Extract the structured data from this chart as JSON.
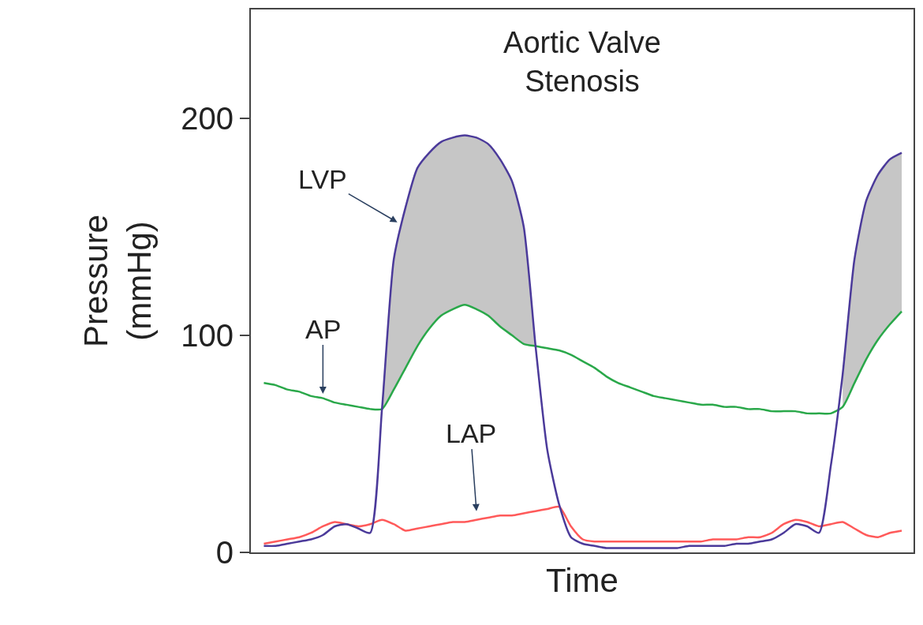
{
  "chart_data": {
    "type": "line",
    "title": "Aortic Valve\nStenosis",
    "xlabel": "Time",
    "ylabel": "Pressure\n(mmHg)",
    "categories": [
      null,
      null,
      null,
      null,
      null,
      null,
      null,
      null,
      null,
      null,
      null,
      null,
      null,
      null,
      null,
      null,
      null,
      null,
      null,
      null,
      null,
      null,
      null,
      null,
      null,
      null,
      null,
      null,
      null,
      null,
      null,
      null,
      null,
      null,
      null,
      null,
      null,
      null,
      null,
      null,
      null,
      null,
      null,
      null,
      null,
      null,
      null,
      null,
      null,
      null,
      null,
      null,
      null,
      null,
      null
    ],
    "series": [
      {
        "color": "#2aa84a",
        "values": [
          78,
          77,
          75,
          74,
          72,
          71,
          69,
          68,
          67,
          66,
          66,
          75,
          85,
          95,
          103,
          109,
          112,
          114,
          112,
          109,
          104,
          100,
          96,
          95,
          94,
          93,
          91,
          88,
          85,
          81,
          78,
          76,
          74,
          72,
          71,
          70,
          69,
          68,
          68,
          67,
          67,
          66,
          66,
          65,
          65,
          65,
          64,
          64,
          64,
          67,
          78,
          89,
          98,
          105,
          111
        ]
      },
      {
        "color": "#ff5a5a",
        "values": [
          4,
          5,
          6,
          7,
          9,
          12,
          14,
          13,
          12,
          13,
          15,
          13,
          10,
          11,
          12,
          13,
          14,
          14,
          15,
          16,
          17,
          17,
          18,
          19,
          20,
          21,
          12,
          6,
          5,
          5,
          5,
          5,
          5,
          5,
          5,
          5,
          5,
          5,
          6,
          6,
          6,
          7,
          7,
          9,
          13,
          15,
          14,
          12,
          13,
          14,
          11,
          8,
          7,
          9,
          10
        ]
      },
      {
        "color": "#4b3a9a",
        "values": [
          3,
          3,
          4,
          5,
          6,
          8,
          12,
          13,
          11,
          9,
          66,
          135,
          159,
          177,
          184,
          189,
          191,
          192,
          191,
          188,
          181,
          171,
          150,
          95,
          47,
          22,
          7,
          4,
          3,
          2,
          2,
          2,
          2,
          2,
          2,
          2,
          3,
          3,
          3,
          3,
          4,
          4,
          5,
          6,
          9,
          13,
          12,
          9,
          40,
          82,
          135,
          162,
          174,
          181,
          184
        ],
        "lower": [
          null,
          null,
          null,
          null,
          null,
          null,
          null,
          null,
          null,
          null,
          66,
          75,
          85,
          95,
          103,
          109,
          112,
          114,
          112,
          109,
          104,
          100,
          96,
          95,
          null,
          null,
          null,
          null,
          null,
          null,
          null,
          null,
          null,
          null,
          null,
          null,
          null,
          null,
          null,
          null,
          null,
          null,
          null,
          null,
          null,
          null,
          null,
          null,
          null,
          67,
          78,
          89,
          98,
          105,
          111
        ],
        "upper": [
          null,
          null,
          null,
          null,
          null,
          null,
          null,
          null,
          null,
          null,
          66,
          135,
          159,
          177,
          184,
          189,
          191,
          192,
          191,
          188,
          181,
          171,
          150,
          95,
          null,
          null,
          null,
          null,
          null,
          null,
          null,
          null,
          null,
          null,
          null,
          null,
          null,
          null,
          null,
          null,
          null,
          null,
          null,
          null,
          null,
          null,
          null,
          null,
          null,
          82,
          135,
          162,
          174,
          181,
          184
        ]
      }
    ],
    "annotations": [
      "LVP",
      "AP",
      "LAP"
    ],
    "ylim": [
      0,
      250
    ],
    "yticks": [
      0,
      100,
      200
    ],
    "tick_labels": "y"
  }
}
